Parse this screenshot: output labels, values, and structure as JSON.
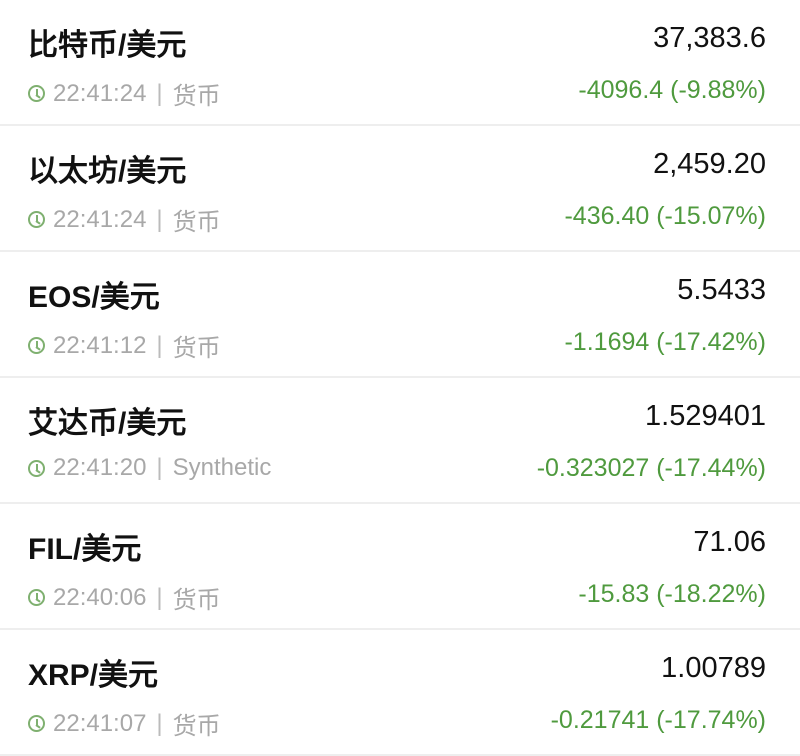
{
  "accent_color": "#4f9a3e",
  "items": [
    {
      "name": "比特币/美元",
      "price": "37,383.6",
      "time": "22:41:24",
      "category": "货币",
      "change": "-4096.4 (-9.88%)"
    },
    {
      "name": "以太坊/美元",
      "price": "2,459.20",
      "time": "22:41:24",
      "category": "货币",
      "change": "-436.40 (-15.07%)"
    },
    {
      "name": "EOS/美元",
      "price": "5.5433",
      "time": "22:41:12",
      "category": "货币",
      "change": "-1.1694 (-17.42%)"
    },
    {
      "name": "艾达币/美元",
      "price": "1.529401",
      "time": "22:41:20",
      "category": "Synthetic",
      "change": "-0.323027 (-17.44%)"
    },
    {
      "name": "FIL/美元",
      "price": "71.06",
      "time": "22:40:06",
      "category": "货币",
      "change": "-15.83 (-18.22%)"
    },
    {
      "name": "XRP/美元",
      "price": "1.00789",
      "time": "22:41:07",
      "category": "货币",
      "change": "-0.21741 (-17.74%)"
    }
  ]
}
